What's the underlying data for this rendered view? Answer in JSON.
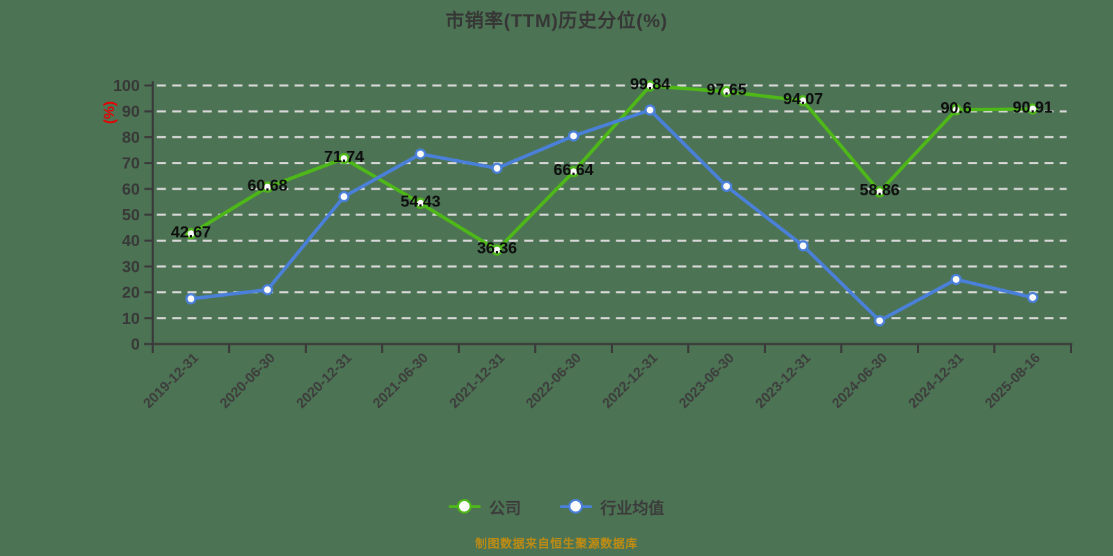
{
  "title": "市销率(TTM)历史分位(%)",
  "footer": {
    "text": "制图数据来自恒生聚源数据库"
  },
  "colors": {
    "background": "#4c7353",
    "company": "#4eb819",
    "industry": "#4a80d9",
    "grid": "#d8d8d8",
    "axis": "#3a3a3a",
    "axis_label": "#383838",
    "data_label": "#0d0d0d",
    "unit_label": "#e60000",
    "footer_text": "#c08c12"
  },
  "chart_data": {
    "type": "line",
    "title": "市销率(TTM)历史分位(%)",
    "xlabel": "",
    "ylabel": "(%)",
    "ylim": [
      0,
      100
    ],
    "ytick_interval": 10,
    "grid": "horizontal-dashed-white",
    "legend_position": "bottom",
    "categories": [
      "2019-12-31",
      "2020-06-30",
      "2020-12-31",
      "2021-06-30",
      "2021-12-31",
      "2022-06-30",
      "2022-12-31",
      "2023-06-30",
      "2023-12-31",
      "2024-06-30",
      "2024-12-31",
      "2025-08-16"
    ],
    "series": [
      {
        "name": "公司",
        "color": "#4eb819",
        "point_style": "white-filled-circle",
        "labeled": true,
        "values": [
          42.67,
          60.68,
          71.74,
          54.43,
          36.36,
          66.64,
          99.84,
          97.65,
          94.07,
          58.86,
          90.6,
          90.91
        ]
      },
      {
        "name": "行业均值",
        "color": "#4a80d9",
        "point_style": "white-filled-circle",
        "labeled": false,
        "values": [
          17.5,
          21,
          57,
          73.5,
          68,
          80.5,
          90.5,
          61,
          38,
          9,
          25,
          18
        ]
      }
    ]
  }
}
